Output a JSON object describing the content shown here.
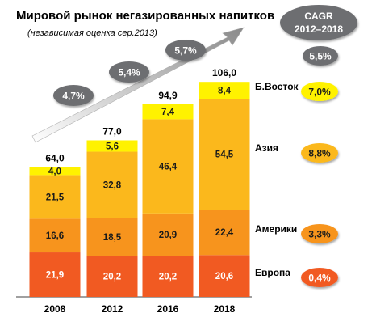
{
  "chart_data": {
    "type": "bar",
    "stacked": true,
    "title": "Мировой рынок негазированных напитков",
    "subtitle": "(независимая оценка сер.2013)",
    "categories": [
      "2008",
      "2012",
      "2016",
      "2018"
    ],
    "series": [
      {
        "name": "Европа",
        "values": [
          21.9,
          20.2,
          20.2,
          20.6
        ],
        "labels": [
          "21,9",
          "20,2",
          "20,2",
          "20,6"
        ],
        "color": "#f15a22",
        "cagr": "0,4%"
      },
      {
        "name": "Америки",
        "values": [
          16.6,
          18.5,
          20.9,
          22.4
        ],
        "labels": [
          "16,6",
          "18,5",
          "20,9",
          "22,4"
        ],
        "color": "#f7941d",
        "cagr": "3,3%"
      },
      {
        "name": "Азия",
        "values": [
          21.5,
          32.8,
          46.4,
          54.5
        ],
        "labels": [
          "21,5",
          "32,8",
          "46,4",
          "54,5"
        ],
        "color": "#fbb81c",
        "cagr": "8,8%"
      },
      {
        "name": "Б.Восток",
        "values": [
          4.0,
          5.6,
          7.4,
          8.4
        ],
        "labels": [
          "4,0",
          "5,6",
          "7,4",
          "8,4"
        ],
        "color": "#fff200",
        "cagr": "7,0%"
      }
    ],
    "totals": [
      "64,0",
      "77,0",
      "94,9",
      "106,0"
    ],
    "growth_rates": [
      "4,7%",
      "5,4%",
      "5,7%"
    ],
    "cagr_header": [
      "CAGR",
      "2012–2018"
    ],
    "cagr_total": "5,5%",
    "ylim": [
      0,
      106
    ],
    "xlabel": "",
    "ylabel": "",
    "grid": false,
    "legend": "right"
  }
}
